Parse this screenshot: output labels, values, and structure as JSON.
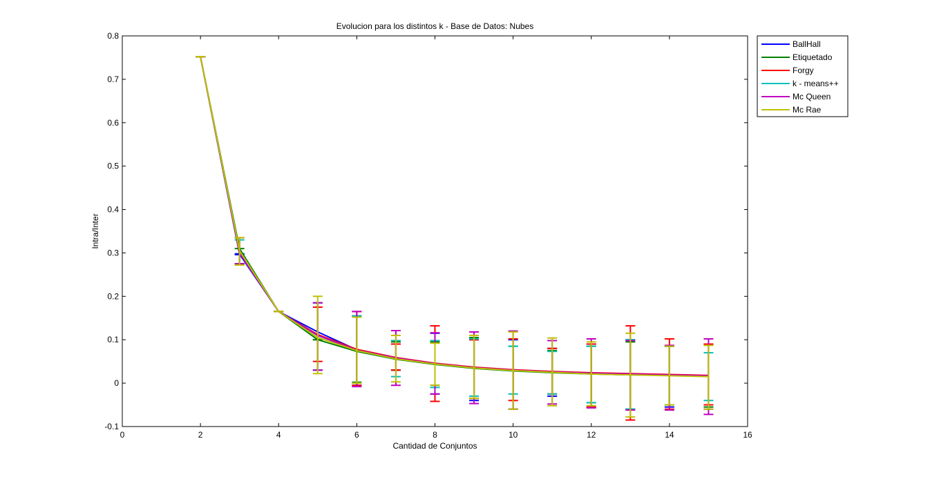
{
  "chart_data": {
    "type": "line",
    "title": "Evolucion para los distintos k  - Base de Datos: Nubes",
    "xlabel": "Cantidad de Conjuntos",
    "ylabel": "Intra/Inter",
    "xlim": [
      0,
      16
    ],
    "ylim": [
      -0.1,
      0.8
    ],
    "xticks": [
      "0",
      "2",
      "4",
      "6",
      "8",
      "10",
      "12",
      "14",
      "16"
    ],
    "yticks": [
      "-0.1",
      "0",
      "0.1",
      "0.2",
      "0.3",
      "0.4",
      "0.5",
      "0.6",
      "0.7",
      "0.8"
    ],
    "grid": false,
    "legend_position": "outside-top-right",
    "x": [
      2,
      3,
      4,
      5,
      6,
      7,
      8,
      9,
      10,
      11,
      12,
      13,
      14,
      15
    ],
    "series": [
      {
        "name": "BallHall",
        "color": "#0000ff",
        "values": [
          0.752,
          0.297,
          0.165,
          0.118,
          0.077,
          0.058,
          0.045,
          0.036,
          0.03,
          0.026,
          0.023,
          0.021,
          0.019,
          0.017
        ],
        "err_low": [
          0.752,
          0.296,
          0.165,
          0.03,
          -0.005,
          0.03,
          -0.025,
          -0.04,
          -0.06,
          -0.03,
          -0.055,
          -0.06,
          -0.055,
          -0.06
        ],
        "err_high": [
          0.752,
          0.298,
          0.165,
          0.185,
          0.155,
          0.09,
          0.115,
          0.1,
          0.1,
          0.08,
          0.09,
          0.1,
          0.085,
          0.09
        ]
      },
      {
        "name": "Etiquetado",
        "color": "#008000",
        "values": [
          0.752,
          0.31,
          0.165,
          0.1,
          0.073,
          0.055,
          0.043,
          0.034,
          0.028,
          0.024,
          0.021,
          0.019,
          0.018,
          0.016
        ],
        "err_low": [
          0.752,
          0.275,
          0.165,
          0.1,
          0.002,
          0.03,
          -0.005,
          -0.035,
          -0.06,
          -0.025,
          -0.045,
          -0.06,
          -0.05,
          -0.055
        ],
        "err_high": [
          0.752,
          0.31,
          0.165,
          0.1,
          0.155,
          0.095,
          0.095,
          0.105,
          0.085,
          0.075,
          0.085,
          0.095,
          0.085,
          0.09
        ]
      },
      {
        "name": "Forgy",
        "color": "#ff0000",
        "values": [
          0.752,
          0.3,
          0.165,
          0.112,
          0.078,
          0.059,
          0.046,
          0.037,
          0.031,
          0.027,
          0.024,
          0.022,
          0.02,
          0.018
        ],
        "err_low": [
          0.752,
          0.275,
          0.165,
          0.05,
          -0.005,
          0.03,
          -0.042,
          -0.035,
          -0.04,
          -0.025,
          -0.055,
          -0.085,
          -0.06,
          -0.05
        ],
        "err_high": [
          0.752,
          0.335,
          0.165,
          0.175,
          0.165,
          0.09,
          0.132,
          0.1,
          0.102,
          0.08,
          0.09,
          0.132,
          0.102,
          0.09
        ]
      },
      {
        "name": "k - means++",
        "color": "#00bfbf",
        "values": [
          0.752,
          0.3,
          0.165,
          0.11,
          0.076,
          0.057,
          0.045,
          0.035,
          0.029,
          0.025,
          0.022,
          0.02,
          0.018,
          0.016
        ],
        "err_low": [
          0.752,
          0.275,
          0.165,
          0.03,
          0.0,
          0.015,
          -0.01,
          -0.03,
          -0.025,
          -0.025,
          -0.045,
          -0.06,
          -0.05,
          -0.04
        ],
        "err_high": [
          0.752,
          0.33,
          0.165,
          0.185,
          0.155,
          0.098,
          0.098,
          0.102,
          0.085,
          0.073,
          0.085,
          0.1,
          0.085,
          0.07
        ]
      },
      {
        "name": "Mc Queen",
        "color": "#bf00bf",
        "values": [
          0.752,
          0.3,
          0.165,
          0.11,
          0.076,
          0.058,
          0.045,
          0.036,
          0.03,
          0.026,
          0.023,
          0.021,
          0.019,
          0.017
        ],
        "err_low": [
          0.752,
          0.275,
          0.165,
          0.03,
          -0.008,
          -0.005,
          -0.025,
          -0.047,
          -0.06,
          -0.048,
          -0.057,
          -0.062,
          -0.062,
          -0.072
        ],
        "err_high": [
          0.752,
          0.335,
          0.165,
          0.185,
          0.165,
          0.121,
          0.116,
          0.118,
          0.12,
          0.098,
          0.102,
          0.098,
          0.087,
          0.102
        ]
      },
      {
        "name": "Mc Rae",
        "color": "#bfbf00",
        "values": [
          0.752,
          0.305,
          0.165,
          0.105,
          0.075,
          0.056,
          0.044,
          0.035,
          0.029,
          0.025,
          0.021,
          0.019,
          0.017,
          0.015
        ],
        "err_low": [
          0.752,
          0.272,
          0.165,
          0.022,
          0.0,
          0.003,
          -0.005,
          -0.035,
          -0.06,
          -0.052,
          -0.052,
          -0.078,
          -0.05,
          -0.06
        ],
        "err_high": [
          0.752,
          0.335,
          0.165,
          0.2,
          0.152,
          0.11,
          0.092,
          0.11,
          0.118,
          0.104,
          0.095,
          0.115,
          0.085,
          0.087
        ]
      }
    ]
  }
}
